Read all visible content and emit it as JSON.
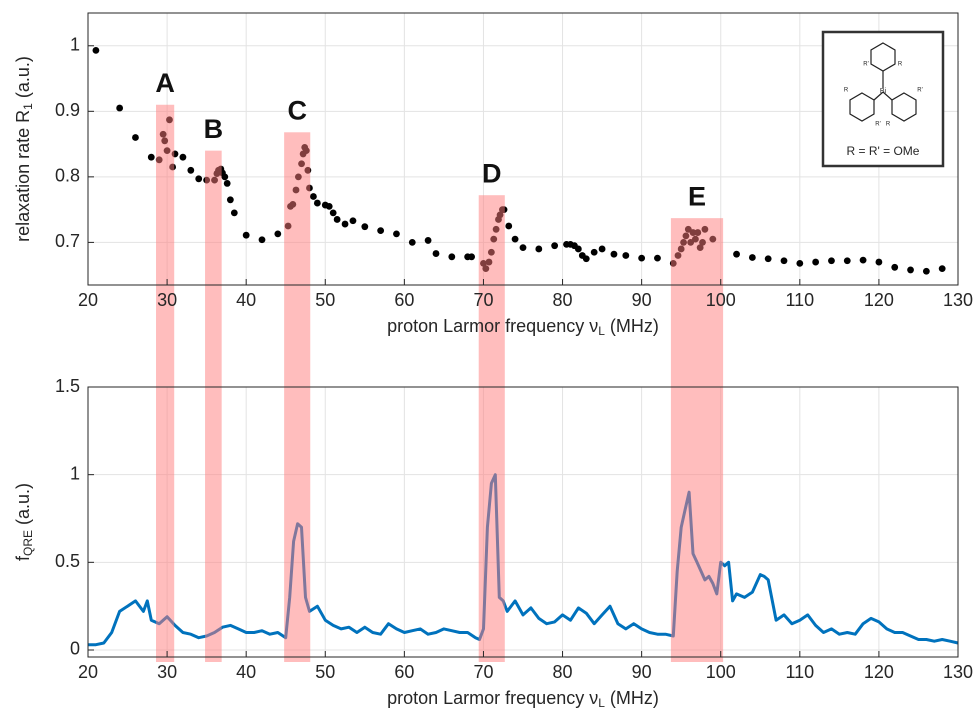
{
  "chart_data": [
    {
      "type": "scatter",
      "x_label": {
        "text": "proton Larmor frequency ν",
        "sub": "L",
        "suffix": " (MHz)"
      },
      "y_label": {
        "text": "relaxation rate R",
        "sub": "1",
        "suffix": " (a.u.)"
      },
      "xlim": [
        20,
        130
      ],
      "xticks": [
        20,
        30,
        40,
        50,
        60,
        70,
        80,
        90,
        100,
        110,
        120,
        130
      ],
      "ylim": [
        0.635,
        1.05
      ],
      "yticks": [
        0.7,
        0.8,
        0.9,
        1
      ],
      "grid": true,
      "color": "#000000",
      "band_color": "#ff7b7b",
      "x": [
        21,
        24,
        26,
        28,
        29,
        29.5,
        29.7,
        30,
        30.3,
        30.7,
        31,
        32,
        33,
        34,
        35,
        36,
        36.3,
        36.5,
        36.8,
        37,
        37.3,
        37.6,
        38,
        38.5,
        40,
        42,
        44,
        45.3,
        45.6,
        45.9,
        46.3,
        46.6,
        47,
        47.2,
        47.4,
        47.6,
        47.8,
        48,
        48.5,
        49,
        50,
        50.5,
        51,
        51.5,
        52.5,
        53.5,
        55,
        57,
        59,
        61,
        63,
        64,
        66,
        68,
        68.5,
        70,
        70.3,
        70.7,
        71,
        71.3,
        71.6,
        71.9,
        72.1,
        72.4,
        72.6,
        73.2,
        74,
        75,
        77,
        79,
        80.5,
        81,
        81.5,
        82,
        82.5,
        83,
        84,
        85,
        86.5,
        88,
        90,
        92,
        94,
        94.6,
        95,
        95.3,
        95.6,
        95.9,
        96.2,
        96.5,
        96.8,
        97.1,
        97.4,
        97.7,
        98,
        99,
        102,
        104,
        106,
        108,
        110,
        112,
        114,
        116,
        118,
        120,
        122,
        124,
        126,
        128
      ],
      "values": [
        0.993,
        0.905,
        0.86,
        0.83,
        0.826,
        0.865,
        0.855,
        0.84,
        0.887,
        0.815,
        0.835,
        0.83,
        0.81,
        0.797,
        0.795,
        0.795,
        0.805,
        0.81,
        0.812,
        0.806,
        0.8,
        0.79,
        0.765,
        0.745,
        0.711,
        0.704,
        0.713,
        0.725,
        0.755,
        0.758,
        0.78,
        0.8,
        0.82,
        0.835,
        0.845,
        0.84,
        0.81,
        0.783,
        0.77,
        0.76,
        0.757,
        0.755,
        0.745,
        0.735,
        0.728,
        0.733,
        0.724,
        0.718,
        0.713,
        0.7,
        0.703,
        0.683,
        0.678,
        0.678,
        0.678,
        0.668,
        0.66,
        0.67,
        0.685,
        0.705,
        0.72,
        0.735,
        0.742,
        0.75,
        0.75,
        0.725,
        0.705,
        0.692,
        0.69,
        0.695,
        0.697,
        0.697,
        0.695,
        0.69,
        0.68,
        0.675,
        0.685,
        0.69,
        0.682,
        0.68,
        0.676,
        0.676,
        0.668,
        0.68,
        0.69,
        0.7,
        0.71,
        0.72,
        0.7,
        0.715,
        0.705,
        0.715,
        0.692,
        0.7,
        0.72,
        0.705,
        0.682,
        0.677,
        0.675,
        0.672,
        0.668,
        0.67,
        0.672,
        0.672,
        0.673,
        0.67,
        0.662,
        0.658,
        0.656,
        0.66
      ],
      "regions": [
        {
          "label": "A",
          "x0": 28.6,
          "x1": 30.9,
          "ytop": 0.91
        },
        {
          "label": "B",
          "x0": 34.8,
          "x1": 36.9,
          "ytop": 0.84
        },
        {
          "label": "C",
          "x0": 44.8,
          "x1": 48.1,
          "ytop": 0.868
        },
        {
          "label": "D",
          "x0": 69.4,
          "x1": 72.7,
          "ytop": 0.772
        },
        {
          "label": "E",
          "x0": 93.7,
          "x1": 100.3,
          "ytop": 0.737
        }
      ],
      "inset": {
        "caption": "R = R' = OMe",
        "center": "Bi",
        "substituents": [
          "R'",
          "R",
          "R",
          "R'",
          "R'",
          "R"
        ]
      }
    },
    {
      "type": "line",
      "x_label": {
        "text": "proton Larmor frequency ν",
        "sub": "L",
        "suffix": " (MHz)"
      },
      "y_label": {
        "text": "f",
        "sub": "QRE",
        "suffix": " (a.u.)"
      },
      "xlim": [
        20,
        130
      ],
      "xticks": [
        20,
        30,
        40,
        50,
        60,
        70,
        80,
        90,
        100,
        110,
        120,
        130
      ],
      "ylim": [
        -0.04,
        1.5
      ],
      "yticks": [
        0,
        0.5,
        1,
        1.5
      ],
      "grid": true,
      "color": "#0072bd",
      "x": [
        20,
        21,
        22,
        23,
        24,
        25,
        26,
        27,
        27.5,
        28,
        29,
        30,
        31,
        32,
        33,
        34,
        35,
        36,
        37,
        38,
        39,
        40,
        41,
        42,
        43,
        44,
        45,
        45.5,
        46,
        46.5,
        47,
        47.5,
        48,
        49,
        50,
        51,
        52,
        53,
        54,
        55,
        56,
        57,
        58,
        59,
        60,
        61,
        62,
        63,
        64,
        65,
        66,
        67,
        68,
        69,
        69.5,
        70,
        70.5,
        71,
        71.5,
        72,
        72.5,
        73,
        74,
        75,
        76,
        77,
        78,
        79,
        80,
        81,
        82,
        83,
        84,
        85,
        86,
        87,
        88,
        89,
        90,
        91,
        92,
        93,
        94,
        94.5,
        95,
        95.5,
        96,
        96.5,
        97,
        97.5,
        98,
        98.5,
        99,
        99.5,
        100,
        100.5,
        101,
        101.5,
        102,
        103,
        104,
        105,
        105.5,
        106,
        107,
        108,
        109,
        110,
        111,
        112,
        113,
        114,
        115,
        116,
        117,
        118,
        119,
        120,
        121,
        122,
        123,
        124,
        125,
        126,
        127,
        128,
        129,
        130
      ],
      "values": [
        0.03,
        0.03,
        0.04,
        0.1,
        0.22,
        0.25,
        0.28,
        0.22,
        0.28,
        0.17,
        0.15,
        0.19,
        0.14,
        0.1,
        0.09,
        0.07,
        0.08,
        0.1,
        0.13,
        0.14,
        0.12,
        0.1,
        0.1,
        0.11,
        0.09,
        0.1,
        0.07,
        0.3,
        0.62,
        0.72,
        0.7,
        0.3,
        0.22,
        0.25,
        0.17,
        0.14,
        0.12,
        0.13,
        0.1,
        0.13,
        0.1,
        0.09,
        0.15,
        0.12,
        0.1,
        0.11,
        0.12,
        0.09,
        0.1,
        0.12,
        0.11,
        0.1,
        0.1,
        0.07,
        0.06,
        0.12,
        0.7,
        0.95,
        1.0,
        0.3,
        0.28,
        0.22,
        0.28,
        0.2,
        0.24,
        0.18,
        0.15,
        0.16,
        0.2,
        0.17,
        0.24,
        0.21,
        0.15,
        0.2,
        0.25,
        0.15,
        0.12,
        0.15,
        0.12,
        0.1,
        0.09,
        0.09,
        0.08,
        0.45,
        0.7,
        0.8,
        0.9,
        0.55,
        0.5,
        0.45,
        0.4,
        0.42,
        0.38,
        0.32,
        0.5,
        0.48,
        0.5,
        0.28,
        0.32,
        0.3,
        0.33,
        0.43,
        0.42,
        0.4,
        0.17,
        0.2,
        0.15,
        0.17,
        0.2,
        0.14,
        0.1,
        0.12,
        0.09,
        0.1,
        0.09,
        0.15,
        0.18,
        0.16,
        0.12,
        0.1,
        0.1,
        0.08,
        0.06,
        0.06,
        0.05,
        0.06,
        0.05,
        0.04
      ]
    }
  ]
}
